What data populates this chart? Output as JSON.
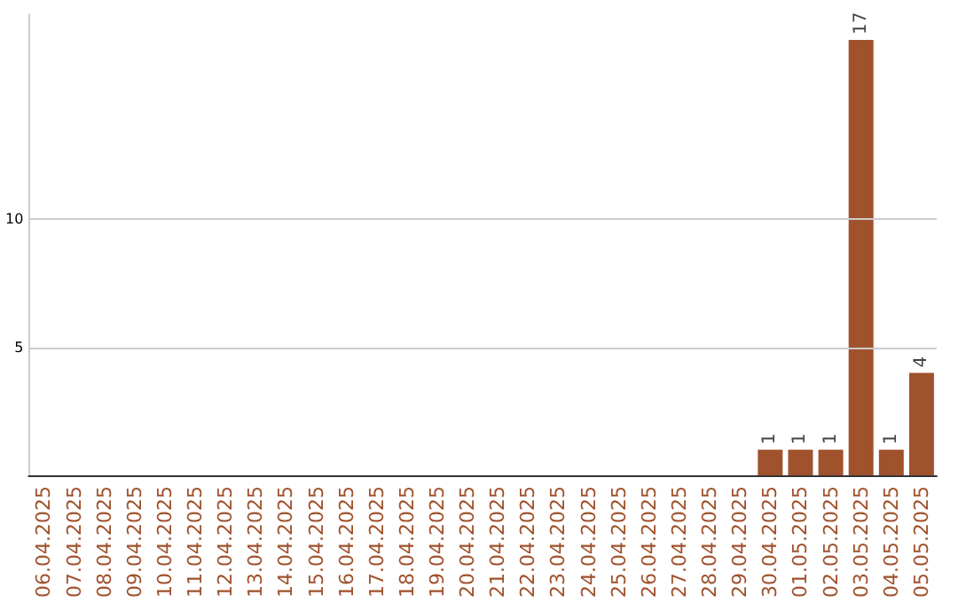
{
  "chart_data": {
    "type": "bar",
    "categories": [
      "06.04.2025",
      "07.04.2025",
      "08.04.2025",
      "09.04.2025",
      "10.04.2025",
      "11.04.2025",
      "12.04.2025",
      "13.04.2025",
      "14.04.2025",
      "15.04.2025",
      "16.04.2025",
      "17.04.2025",
      "18.04.2025",
      "19.04.2025",
      "20.04.2025",
      "21.04.2025",
      "22.04.2025",
      "23.04.2025",
      "24.04.2025",
      "25.04.2025",
      "26.04.2025",
      "27.04.2025",
      "28.04.2025",
      "29.04.2025",
      "30.04.2025",
      "01.05.2025",
      "02.05.2025",
      "03.05.2025",
      "04.05.2025",
      "05.05.2025"
    ],
    "values": [
      0,
      0,
      0,
      0,
      0,
      0,
      0,
      0,
      0,
      0,
      0,
      0,
      0,
      0,
      0,
      0,
      0,
      0,
      0,
      0,
      0,
      0,
      0,
      0,
      1,
      1,
      1,
      17,
      1,
      4
    ],
    "value_labels": [
      null,
      null,
      null,
      null,
      null,
      null,
      null,
      null,
      null,
      null,
      null,
      null,
      null,
      null,
      null,
      null,
      null,
      null,
      null,
      null,
      null,
      null,
      null,
      null,
      "1",
      "1",
      "1",
      "17",
      "1",
      "4"
    ],
    "color": "#a0522d",
    "ylim": [
      0,
      18
    ],
    "yticks": [
      5,
      10
    ],
    "grid": "y"
  }
}
